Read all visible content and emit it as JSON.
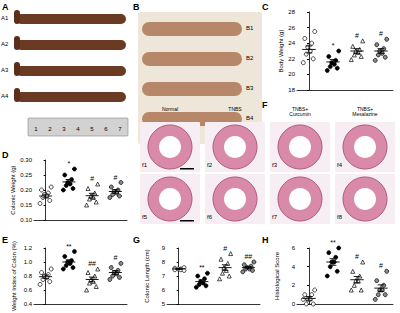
{
  "photo_panels": [
    {
      "panel": "A",
      "labels": [
        "A1",
        "A2",
        "A3",
        "A4"
      ],
      "ruler": [
        1,
        2,
        3,
        4,
        5,
        6,
        7
      ]
    },
    {
      "panel": "B",
      "labels": [
        "B1",
        "B2",
        "B3",
        "B4"
      ]
    },
    {
      "panel": "F",
      "columns": [
        "Normal",
        "TNBS",
        "TNBS+ Curcumin",
        "TNBS+ Mesalazine"
      ],
      "labels": [
        "f1",
        "f2",
        "f3",
        "f4",
        "f5",
        "f6",
        "f7",
        "f8"
      ]
    }
  ],
  "chart_data": [
    {
      "panel": "C",
      "type": "scatter",
      "y_label": "Body Weight (g)",
      "categories": [
        null,
        null,
        null,
        null
      ],
      "ylim": [
        18,
        28
      ],
      "yticks": [
        18,
        20,
        22,
        24,
        26,
        28
      ],
      "grid": false,
      "tick_labels": "y",
      "groups": [
        {
          "marker": "circle-open",
          "values": [
            25.5,
            24.6,
            24.0,
            23.5,
            23.0,
            22.6,
            22.0,
            21.5
          ],
          "mean": 23.2,
          "sem": 0.45
        },
        {
          "marker": "circle",
          "values": [
            23.0,
            22.3,
            21.8,
            21.5,
            21.3,
            21.0,
            20.8,
            20.5
          ],
          "mean": 21.6,
          "sem": 0.3,
          "annotation": "*"
        },
        {
          "marker": "triangle-open",
          "values": [
            24.3,
            23.6,
            23.2,
            23.0,
            22.8,
            22.5,
            22.3,
            21.9
          ],
          "mean": 23.0,
          "sem": 0.3,
          "annotation": "#"
        },
        {
          "marker": "circle-grey",
          "values": [
            24.5,
            23.8,
            23.3,
            23.0,
            22.7,
            22.5,
            22.2,
            21.8
          ],
          "mean": 23.0,
          "sem": 0.3,
          "annotation": "#"
        }
      ]
    },
    {
      "panel": "D",
      "type": "scatter",
      "y_label": "Colonic Weight (g)",
      "categories": [
        null,
        null,
        null,
        null
      ],
      "ylim": [
        0.1,
        0.3
      ],
      "yticks": [
        {
          "value": 0.1,
          "label": "0.10"
        },
        {
          "value": 0.15,
          "label": "0.15"
        },
        {
          "value": 0.2,
          "label": "0.20"
        },
        {
          "value": 0.25,
          "label": "0.25"
        },
        {
          "value": 0.3,
          "label": "0.30"
        }
      ],
      "grid": false,
      "tick_labels": "y",
      "groups": [
        {
          "marker": "circle-open",
          "values": [
            0.21,
            0.2,
            0.19,
            0.185,
            0.18,
            0.175,
            0.165,
            0.155
          ],
          "mean": 0.18,
          "sem": 0.006
        },
        {
          "marker": "circle",
          "values": [
            0.27,
            0.25,
            0.235,
            0.225,
            0.22,
            0.215,
            0.205,
            0.2
          ],
          "mean": 0.227,
          "sem": 0.008,
          "annotation": "*"
        },
        {
          "marker": "triangle-open",
          "values": [
            0.22,
            0.205,
            0.19,
            0.18,
            0.175,
            0.17,
            0.16,
            0.15
          ],
          "mean": 0.181,
          "sem": 0.008,
          "annotation": "#"
        },
        {
          "marker": "circle-grey",
          "values": [
            0.225,
            0.21,
            0.2,
            0.195,
            0.19,
            0.185,
            0.18,
            0.175
          ],
          "mean": 0.195,
          "sem": 0.006,
          "annotation": "#"
        }
      ]
    },
    {
      "panel": "E",
      "type": "scatter",
      "y_label": "Weight Index of Colon (%)",
      "categories": [
        null,
        null,
        null,
        null
      ],
      "ylim": [
        0.4,
        1.2
      ],
      "yticks": [
        0.4,
        0.6,
        0.8,
        {
          "value": 1,
          "label": "1.0"
        },
        1.2
      ],
      "grid": false,
      "tick_labels": "y",
      "groups": [
        {
          "marker": "circle-open",
          "values": [
            0.9,
            0.85,
            0.82,
            0.8,
            0.78,
            0.75,
            0.72,
            0.68
          ],
          "mean": 0.79,
          "sem": 0.025
        },
        {
          "marker": "circle",
          "values": [
            1.15,
            1.08,
            1.02,
            1.0,
            0.98,
            0.95,
            0.92,
            0.9
          ],
          "mean": 1.0,
          "sem": 0.03,
          "annotation": "**"
        },
        {
          "marker": "triangle-open",
          "values": [
            0.9,
            0.85,
            0.8,
            0.75,
            0.72,
            0.7,
            0.65,
            0.6
          ],
          "mean": 0.75,
          "sem": 0.035,
          "annotation": "##"
        },
        {
          "marker": "circle-grey",
          "values": [
            0.98,
            0.92,
            0.88,
            0.85,
            0.83,
            0.8,
            0.78,
            0.75
          ],
          "mean": 0.85,
          "sem": 0.027,
          "annotation": "#"
        }
      ]
    },
    {
      "panel": "G",
      "type": "scatter",
      "y_label": "Colonic Length (cm)",
      "categories": [
        null,
        null,
        null,
        null
      ],
      "ylim": [
        5,
        9
      ],
      "yticks": [
        5,
        6,
        7,
        8,
        9
      ],
      "grid": false,
      "tick_labels": "y",
      "groups": [
        {
          "marker": "circle-open",
          "values": [
            7.6,
            7.55,
            7.5,
            7.5,
            7.45,
            7.45,
            7.4
          ],
          "mean": 7.5,
          "sem": 0.03
        },
        {
          "marker": "circle",
          "values": [
            7.2,
            7.0,
            6.8,
            6.6,
            6.5,
            6.4,
            6.3,
            6.2
          ],
          "mean": 6.6,
          "sem": 0.12,
          "annotation": "**"
        },
        {
          "marker": "triangle-open",
          "values": [
            8.6,
            8.2,
            7.9,
            7.6,
            7.4,
            7.2,
            7.0,
            6.8
          ],
          "mean": 7.6,
          "sem": 0.2,
          "annotation": "#"
        },
        {
          "marker": "circle-grey",
          "values": [
            8.0,
            7.8,
            7.7,
            7.6,
            7.5,
            7.5,
            7.4,
            7.3
          ],
          "mean": 7.6,
          "sem": 0.08,
          "annotation": "##"
        }
      ]
    },
    {
      "panel": "H",
      "type": "scatter",
      "y_label": "Histological Score",
      "categories": [
        null,
        null,
        null,
        null
      ],
      "ylim": [
        0,
        6
      ],
      "yticks": [
        0,
        2,
        4,
        6
      ],
      "grid": false,
      "tick_labels": "y",
      "groups": [
        {
          "marker": "circle-open",
          "values": [
            1.5,
            1,
            1,
            0.5,
            0.5,
            0,
            0,
            0.5
          ],
          "mean": 0.6,
          "sem": 0.2
        },
        {
          "marker": "circle",
          "values": [
            6,
            5.5,
            5,
            4.5,
            4.5,
            4,
            3.5,
            3
          ],
          "mean": 4.5,
          "sem": 0.35,
          "annotation": "**"
        },
        {
          "marker": "triangle-open",
          "values": [
            4.5,
            3.5,
            3,
            2.5,
            2.5,
            2,
            1.5,
            1.5
          ],
          "mean": 2.6,
          "sem": 0.35,
          "annotation": "#"
        },
        {
          "marker": "circle-grey",
          "values": [
            3.5,
            2.5,
            2,
            1.5,
            1.5,
            1,
            1,
            0.5
          ],
          "mean": 1.7,
          "sem": 0.35,
          "annotation": "#"
        }
      ]
    }
  ]
}
